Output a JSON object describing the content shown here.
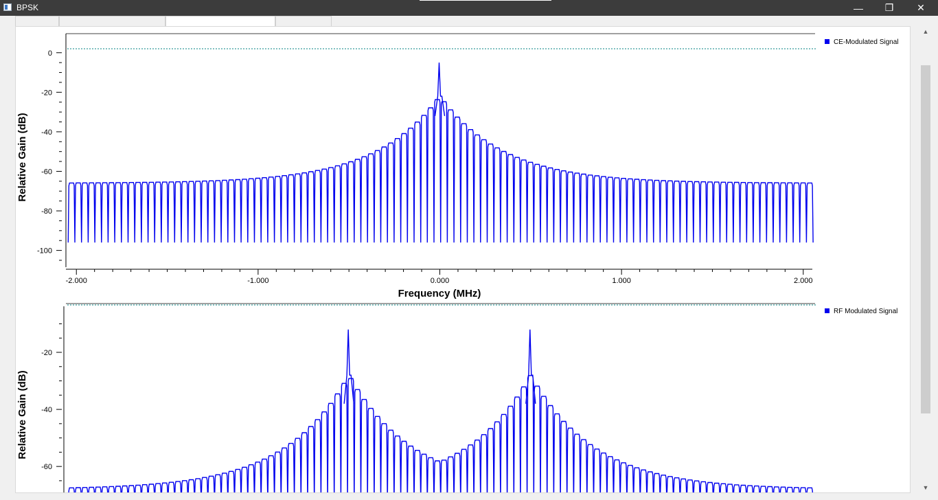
{
  "window": {
    "title": "BPSK"
  },
  "controls": {
    "minimize": "—",
    "restore": "❐",
    "close": "✕"
  },
  "tabs": [
    "",
    "",
    "",
    ""
  ],
  "colors": {
    "trace": "#0000ee",
    "refline": "#008080",
    "axis": "#000000"
  },
  "icons": {
    "app": "app-icon",
    "scroll_up": "chevron-up-icon",
    "scroll_down": "chevron-down-icon"
  },
  "chart_data": [
    {
      "type": "line",
      "title": "",
      "xlabel": "Frequency (MHz)",
      "ylabel": "Relative Gain (dB)",
      "xlim": [
        -2.05,
        2.05
      ],
      "ylim": [
        -105,
        2
      ],
      "xticks": [
        "-2.000",
        "-1.000",
        "0.000",
        "1.000",
        "2.000"
      ],
      "yticks": [
        "0",
        "-20",
        "-40",
        "-60",
        "-80",
        "-100"
      ],
      "legend": "top-right",
      "series": [
        {
          "name": "CE-Modulated Signal",
          "carriers": [
            0.0
          ],
          "peak_db": -5,
          "main_lobe_db": -22,
          "floor_top_db": -66,
          "null_db": -96,
          "null_spacing_mhz": 0.0366
        }
      ]
    },
    {
      "type": "line",
      "title": "",
      "xlabel": "",
      "ylabel": "Relative Gain (dB)",
      "xlim": [
        -2.05,
        2.05
      ],
      "ylim": [
        -72,
        -7
      ],
      "yticks": [
        "-20",
        "-40",
        "-60"
      ],
      "legend": "top-right",
      "series": [
        {
          "name": "RF Modulated Signal",
          "carriers": [
            -0.5,
            0.5
          ],
          "peak_db": -12,
          "main_lobe_db": -28,
          "floor_top_db": -68,
          "null_db": -72,
          "null_spacing_mhz": 0.0366
        }
      ]
    }
  ]
}
